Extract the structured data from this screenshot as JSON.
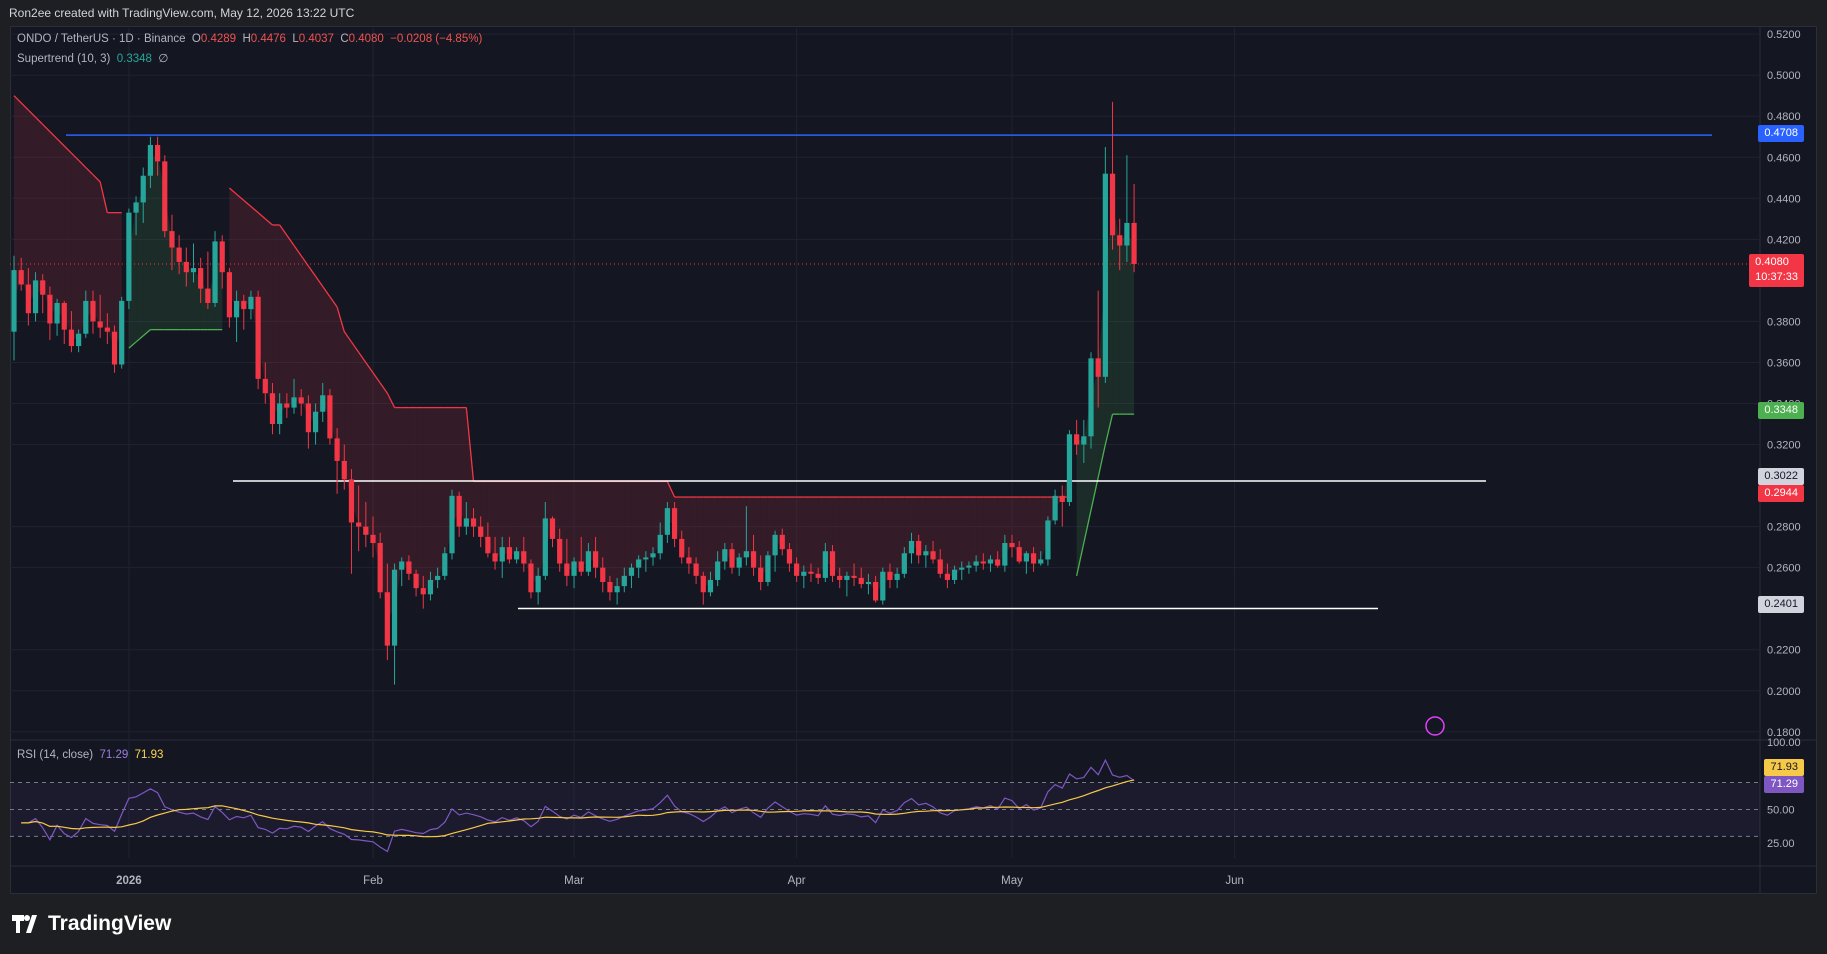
{
  "header": {
    "attribution": "Ron2ee created with TradingView.com, May 12, 2026 13:22 UTC"
  },
  "legend": {
    "symbol": "ONDO / TetherUS · 1D · Binance",
    "o_label": "O",
    "o_value": "0.4289",
    "h_label": "H",
    "h_value": "0.4476",
    "l_label": "L",
    "l_value": "0.4037",
    "c_label": "C",
    "c_value": "0.4080",
    "change": "−0.0208 (−4.85%)",
    "supertrend_label": "Supertrend (10, 3)",
    "supertrend_value": "0.3348",
    "supertrend_suffix": "∅"
  },
  "rsi_legend": {
    "label": "RSI (14, close)",
    "rsi_value": "71.29",
    "ma_value": "71.93"
  },
  "price_tags": {
    "resistance": "0.4708",
    "current_price": "0.4080",
    "countdown": "10:37:33",
    "supertrend": "0.3348",
    "range_top": "0.3022",
    "supertrend_prev": "0.2944",
    "range_bottom": "0.2401",
    "rsi_ma": "71.93",
    "rsi": "71.29"
  },
  "colors": {
    "up": "#26a69a",
    "down": "#f23645",
    "resistance_line": "#2962ff",
    "supertrend_down": "#f23645",
    "supertrend_up": "#4caf50",
    "rsi_line": "#7e57c2",
    "rsi_ma": "#f7c948"
  },
  "brand": "TradingView",
  "chart_data": [
    {
      "type": "candlestick",
      "title": "ONDO / TetherUS · 1D · Binance",
      "y_ticks": [
        "0.5200",
        "0.5000",
        "0.4800",
        "0.4600",
        "0.4400",
        "0.4200",
        "0.3800",
        "0.3600",
        "0.3400",
        "0.3200",
        "0.2800",
        "0.2600",
        "0.2200",
        "0.2000",
        "0.1800"
      ],
      "x_ticks": [
        "2026",
        "Feb",
        "Mar",
        "Apr",
        "May",
        "Jun"
      ],
      "ylim": [
        0.176,
        0.523
      ],
      "horizontal_levels": [
        {
          "value": 0.4708,
          "color": "#2962ff"
        },
        {
          "value": 0.3022,
          "color": "#ffffff"
        },
        {
          "value": 0.2401,
          "color": "#ffffff"
        }
      ],
      "ohlc": [
        [
          0.375,
          0.412,
          0.361,
          0.405
        ],
        [
          0.405,
          0.411,
          0.395,
          0.398
        ],
        [
          0.398,
          0.406,
          0.378,
          0.384
        ],
        [
          0.384,
          0.404,
          0.38,
          0.4
        ],
        [
          0.4,
          0.403,
          0.384,
          0.393
        ],
        [
          0.393,
          0.397,
          0.371,
          0.379
        ],
        [
          0.379,
          0.391,
          0.373,
          0.389
        ],
        [
          0.389,
          0.39,
          0.369,
          0.376
        ],
        [
          0.376,
          0.385,
          0.365,
          0.368
        ],
        [
          0.368,
          0.376,
          0.365,
          0.374
        ],
        [
          0.374,
          0.395,
          0.372,
          0.39
        ],
        [
          0.39,
          0.395,
          0.374,
          0.38
        ],
        [
          0.38,
          0.393,
          0.372,
          0.377
        ],
        [
          0.377,
          0.384,
          0.369,
          0.375
        ],
        [
          0.375,
          0.378,
          0.355,
          0.359
        ],
        [
          0.359,
          0.392,
          0.357,
          0.39
        ],
        [
          0.39,
          0.435,
          0.386,
          0.433
        ],
        [
          0.433,
          0.441,
          0.422,
          0.438
        ],
        [
          0.438,
          0.455,
          0.428,
          0.451
        ],
        [
          0.451,
          0.47,
          0.445,
          0.466
        ],
        [
          0.466,
          0.47,
          0.451,
          0.458
        ],
        [
          0.458,
          0.461,
          0.421,
          0.424
        ],
        [
          0.424,
          0.432,
          0.405,
          0.416
        ],
        [
          0.416,
          0.422,
          0.403,
          0.409
        ],
        [
          0.409,
          0.416,
          0.397,
          0.404
        ],
        [
          0.404,
          0.418,
          0.399,
          0.406
        ],
        [
          0.406,
          0.411,
          0.389,
          0.396
        ],
        [
          0.396,
          0.414,
          0.386,
          0.389
        ],
        [
          0.389,
          0.424,
          0.387,
          0.419
        ],
        [
          0.419,
          0.422,
          0.396,
          0.404
        ],
        [
          0.404,
          0.406,
          0.377,
          0.382
        ],
        [
          0.382,
          0.395,
          0.37,
          0.39
        ],
        [
          0.39,
          0.393,
          0.376,
          0.386
        ],
        [
          0.386,
          0.395,
          0.381,
          0.392
        ],
        [
          0.392,
          0.395,
          0.347,
          0.352
        ],
        [
          0.352,
          0.36,
          0.34,
          0.345
        ],
        [
          0.345,
          0.35,
          0.325,
          0.33
        ],
        [
          0.33,
          0.345,
          0.325,
          0.34
        ],
        [
          0.34,
          0.345,
          0.333,
          0.338
        ],
        [
          0.338,
          0.352,
          0.335,
          0.343
        ],
        [
          0.343,
          0.347,
          0.334,
          0.34
        ],
        [
          0.34,
          0.344,
          0.318,
          0.326
        ],
        [
          0.326,
          0.34,
          0.32,
          0.336
        ],
        [
          0.336,
          0.35,
          0.331,
          0.344
        ],
        [
          0.344,
          0.347,
          0.32,
          0.323
        ],
        [
          0.323,
          0.328,
          0.296,
          0.312
        ],
        [
          0.312,
          0.32,
          0.298,
          0.303
        ],
        [
          0.303,
          0.308,
          0.257,
          0.282
        ],
        [
          0.282,
          0.3,
          0.268,
          0.28
        ],
        [
          0.28,
          0.292,
          0.27,
          0.276
        ],
        [
          0.276,
          0.285,
          0.265,
          0.272
        ],
        [
          0.272,
          0.277,
          0.245,
          0.248
        ],
        [
          0.248,
          0.262,
          0.215,
          0.222
        ],
        [
          0.222,
          0.262,
          0.203,
          0.259
        ],
        [
          0.259,
          0.265,
          0.251,
          0.263
        ],
        [
          0.263,
          0.266,
          0.254,
          0.257
        ],
        [
          0.257,
          0.259,
          0.246,
          0.25
        ],
        [
          0.25,
          0.256,
          0.24,
          0.247
        ],
        [
          0.247,
          0.258,
          0.244,
          0.254
        ],
        [
          0.254,
          0.26,
          0.25,
          0.256
        ],
        [
          0.256,
          0.27,
          0.254,
          0.267
        ],
        [
          0.267,
          0.298,
          0.264,
          0.295
        ],
        [
          0.295,
          0.297,
          0.275,
          0.28
        ],
        [
          0.28,
          0.292,
          0.276,
          0.284
        ],
        [
          0.284,
          0.289,
          0.275,
          0.28
        ],
        [
          0.28,
          0.285,
          0.27,
          0.275
        ],
        [
          0.275,
          0.282,
          0.265,
          0.267
        ],
        [
          0.267,
          0.275,
          0.259,
          0.263
        ],
        [
          0.263,
          0.275,
          0.255,
          0.27
        ],
        [
          0.27,
          0.275,
          0.262,
          0.264
        ],
        [
          0.264,
          0.27,
          0.262,
          0.268
        ],
        [
          0.268,
          0.275,
          0.258,
          0.262
        ],
        [
          0.262,
          0.264,
          0.245,
          0.248
        ],
        [
          0.248,
          0.26,
          0.242,
          0.256
        ],
        [
          0.256,
          0.292,
          0.254,
          0.284
        ],
        [
          0.284,
          0.285,
          0.27,
          0.274
        ],
        [
          0.274,
          0.279,
          0.258,
          0.262
        ],
        [
          0.262,
          0.274,
          0.251,
          0.256
        ],
        [
          0.256,
          0.265,
          0.25,
          0.263
        ],
        [
          0.263,
          0.275,
          0.256,
          0.258
        ],
        [
          0.258,
          0.272,
          0.256,
          0.268
        ],
        [
          0.268,
          0.275,
          0.255,
          0.26
        ],
        [
          0.26,
          0.265,
          0.248,
          0.253
        ],
        [
          0.253,
          0.256,
          0.244,
          0.248
        ],
        [
          0.248,
          0.255,
          0.242,
          0.251
        ],
        [
          0.251,
          0.26,
          0.248,
          0.256
        ],
        [
          0.256,
          0.262,
          0.25,
          0.26
        ],
        [
          0.26,
          0.266,
          0.255,
          0.264
        ],
        [
          0.264,
          0.268,
          0.258,
          0.265
        ],
        [
          0.265,
          0.27,
          0.261,
          0.267
        ],
        [
          0.267,
          0.282,
          0.264,
          0.276
        ],
        [
          0.276,
          0.292,
          0.272,
          0.289
        ],
        [
          0.289,
          0.292,
          0.27,
          0.274
        ],
        [
          0.274,
          0.278,
          0.262,
          0.265
        ],
        [
          0.265,
          0.27,
          0.257,
          0.262
        ],
        [
          0.262,
          0.265,
          0.252,
          0.256
        ],
        [
          0.256,
          0.258,
          0.242,
          0.248
        ],
        [
          0.248,
          0.258,
          0.246,
          0.254
        ],
        [
          0.254,
          0.268,
          0.251,
          0.263
        ],
        [
          0.263,
          0.272,
          0.259,
          0.269
        ],
        [
          0.269,
          0.272,
          0.257,
          0.26
        ],
        [
          0.26,
          0.267,
          0.256,
          0.265
        ],
        [
          0.265,
          0.29,
          0.261,
          0.268
        ],
        [
          0.268,
          0.276,
          0.256,
          0.26
        ],
        [
          0.26,
          0.266,
          0.249,
          0.253
        ],
        [
          0.253,
          0.268,
          0.251,
          0.266
        ],
        [
          0.266,
          0.278,
          0.258,
          0.276
        ],
        [
          0.276,
          0.279,
          0.266,
          0.269
        ],
        [
          0.269,
          0.272,
          0.258,
          0.262
        ],
        [
          0.262,
          0.265,
          0.253,
          0.256
        ],
        [
          0.256,
          0.261,
          0.25,
          0.258
        ],
        [
          0.258,
          0.262,
          0.253,
          0.257
        ],
        [
          0.257,
          0.26,
          0.252,
          0.255
        ],
        [
          0.255,
          0.272,
          0.253,
          0.268
        ],
        [
          0.268,
          0.271,
          0.253,
          0.256
        ],
        [
          0.256,
          0.26,
          0.25,
          0.254
        ],
        [
          0.254,
          0.258,
          0.246,
          0.256
        ],
        [
          0.256,
          0.262,
          0.251,
          0.255
        ],
        [
          0.255,
          0.26,
          0.25,
          0.252
        ],
        [
          0.252,
          0.257,
          0.247,
          0.253
        ],
        [
          0.253,
          0.256,
          0.243,
          0.244
        ],
        [
          0.244,
          0.26,
          0.242,
          0.258
        ],
        [
          0.258,
          0.262,
          0.25,
          0.254
        ],
        [
          0.254,
          0.26,
          0.25,
          0.257
        ],
        [
          0.257,
          0.27,
          0.255,
          0.267
        ],
        [
          0.267,
          0.277,
          0.262,
          0.273
        ],
        [
          0.273,
          0.276,
          0.262,
          0.266
        ],
        [
          0.266,
          0.271,
          0.26,
          0.268
        ],
        [
          0.268,
          0.273,
          0.262,
          0.264
        ],
        [
          0.264,
          0.269,
          0.255,
          0.257
        ],
        [
          0.257,
          0.262,
          0.25,
          0.254
        ],
        [
          0.254,
          0.261,
          0.252,
          0.259
        ],
        [
          0.259,
          0.263,
          0.254,
          0.26
        ],
        [
          0.26,
          0.263,
          0.257,
          0.261
        ],
        [
          0.261,
          0.266,
          0.258,
          0.263
        ],
        [
          0.263,
          0.267,
          0.259,
          0.262
        ],
        [
          0.262,
          0.266,
          0.258,
          0.264
        ],
        [
          0.264,
          0.268,
          0.26,
          0.261
        ],
        [
          0.261,
          0.276,
          0.258,
          0.272
        ],
        [
          0.272,
          0.276,
          0.265,
          0.27
        ],
        [
          0.27,
          0.273,
          0.262,
          0.263
        ],
        [
          0.263,
          0.268,
          0.257,
          0.267
        ],
        [
          0.267,
          0.27,
          0.258,
          0.262
        ],
        [
          0.262,
          0.268,
          0.261,
          0.264
        ],
        [
          0.264,
          0.285,
          0.261,
          0.283
        ],
        [
          0.283,
          0.298,
          0.281,
          0.295
        ],
        [
          0.295,
          0.3,
          0.28,
          0.292
        ],
        [
          0.292,
          0.327,
          0.29,
          0.325
        ],
        [
          0.325,
          0.332,
          0.315,
          0.32
        ],
        [
          0.32,
          0.332,
          0.311,
          0.324
        ],
        [
          0.324,
          0.365,
          0.318,
          0.362
        ],
        [
          0.362,
          0.395,
          0.338,
          0.353
        ],
        [
          0.353,
          0.465,
          0.35,
          0.452
        ],
        [
          0.452,
          0.487,
          0.415,
          0.422
        ],
        [
          0.422,
          0.43,
          0.405,
          0.417
        ],
        [
          0.417,
          0.461,
          0.409,
          0.428
        ],
        [
          0.428,
          0.447,
          0.404,
          0.408
        ]
      ],
      "series": [
        {
          "name": "Supertrend (10, 3)",
          "value": 0.3348
        }
      ]
    },
    {
      "type": "line",
      "title": "RSI (14, close)",
      "y_ticks": [
        "100.00",
        "50.00",
        "25.00"
      ],
      "ylim": [
        14,
        100
      ],
      "levels": [
        70,
        50,
        30
      ],
      "series": [
        {
          "name": "RSI",
          "latest": 71.29
        },
        {
          "name": "MA",
          "latest": 71.93
        }
      ]
    }
  ]
}
